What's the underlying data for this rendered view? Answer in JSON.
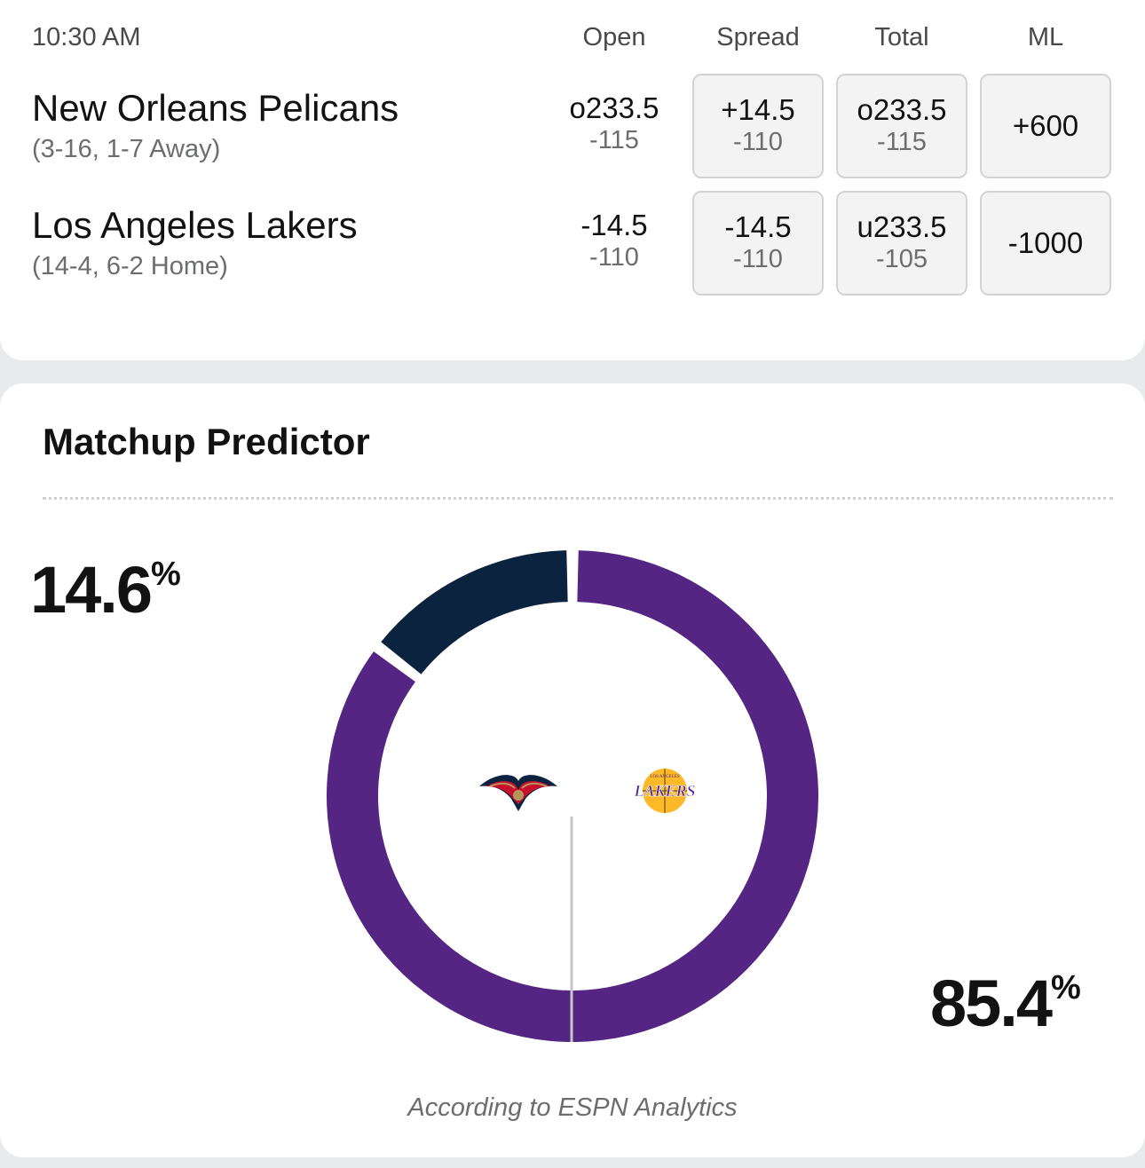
{
  "header": {
    "time": "10:30 AM",
    "columns": {
      "open": "Open",
      "spread": "Spread",
      "total": "Total",
      "ml": "ML"
    }
  },
  "teams": [
    {
      "name": "New Orleans Pelicans",
      "record": "(3-16, 1-7 Away)",
      "open": {
        "line": "o233.5",
        "odds": "-115"
      },
      "spread": {
        "line": "+14.5",
        "odds": "-110"
      },
      "total": {
        "line": "o233.5",
        "odds": "-115"
      },
      "ml": "+600"
    },
    {
      "name": "Los Angeles Lakers",
      "record": "(14-4, 6-2 Home)",
      "open": {
        "line": "-14.5",
        "odds": "-110"
      },
      "spread": {
        "line": "-14.5",
        "odds": "-110"
      },
      "total": {
        "line": "u233.5",
        "odds": "-105"
      },
      "ml": "-1000"
    }
  ],
  "predictor": {
    "title": "Matchup Predictor",
    "away": {
      "value": "14.6",
      "fraction": 0.146,
      "color": "#0c2340",
      "logo": "pelicans-logo"
    },
    "home": {
      "value": "85.4",
      "fraction": 0.854,
      "color": "#552583",
      "logo": "lakers-logo",
      "logo_text": "LAKERS",
      "logo_subtext": "LOS ANGELES"
    },
    "percent_sign": "%",
    "footnote": "According to ESPN Analytics"
  }
}
